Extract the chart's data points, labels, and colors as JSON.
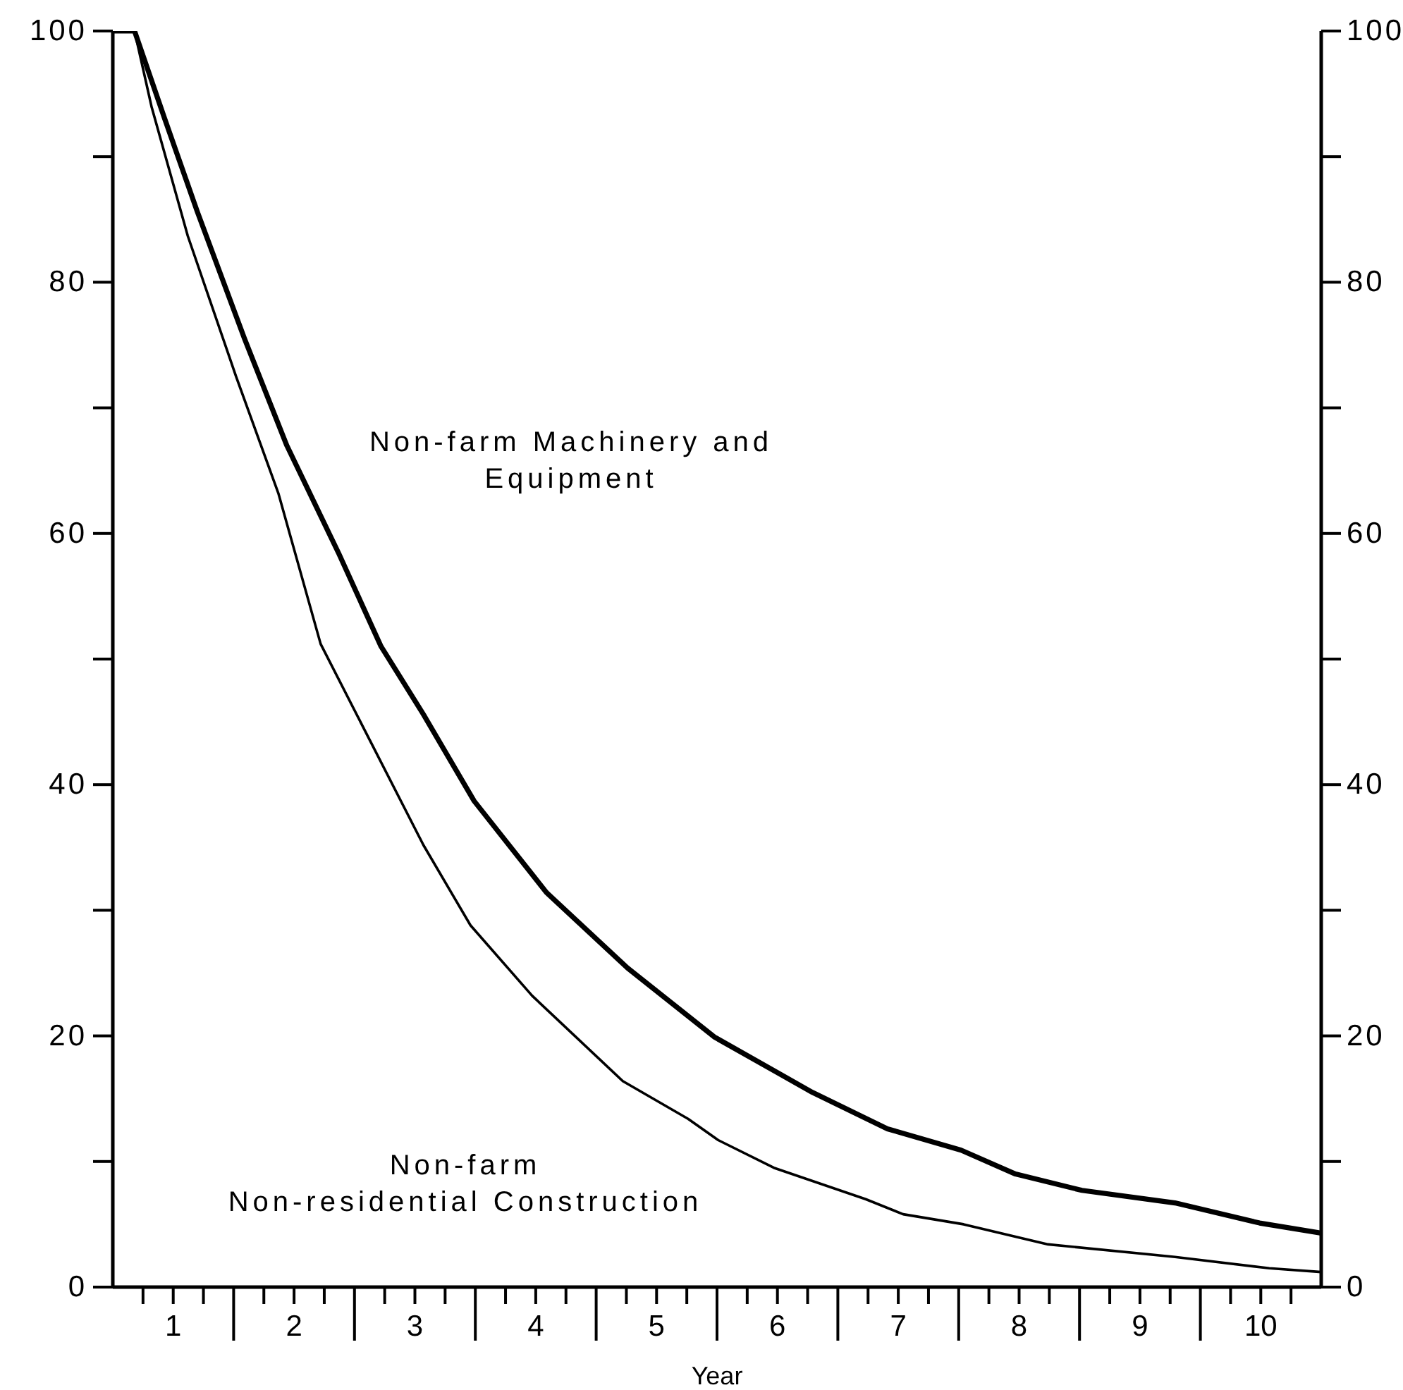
{
  "chart_data": {
    "type": "line",
    "xlabel": "Year",
    "xlim": [
      0.5,
      10.5
    ],
    "xticks": [
      {
        "value": 0.75,
        "label": null
      },
      {
        "value": 1,
        "label": "1"
      },
      {
        "value": 1.25,
        "label": null
      },
      {
        "value": 1.5,
        "label": null
      },
      {
        "value": 1.75,
        "label": null
      },
      {
        "value": 2,
        "label": "2"
      },
      {
        "value": 2.25,
        "label": null
      },
      {
        "value": 2.5,
        "label": null
      },
      {
        "value": 2.75,
        "label": null
      },
      {
        "value": 3,
        "label": "3"
      },
      {
        "value": 3.25,
        "label": null
      },
      {
        "value": 3.5,
        "label": null
      },
      {
        "value": 3.75,
        "label": null
      },
      {
        "value": 4,
        "label": "4"
      },
      {
        "value": 4.25,
        "label": null
      },
      {
        "value": 4.5,
        "label": null
      },
      {
        "value": 4.75,
        "label": null
      },
      {
        "value": 5,
        "label": "5"
      },
      {
        "value": 5.25,
        "label": null
      },
      {
        "value": 5.5,
        "label": null
      },
      {
        "value": 5.75,
        "label": null
      },
      {
        "value": 6,
        "label": "6"
      },
      {
        "value": 6.25,
        "label": null
      },
      {
        "value": 6.5,
        "label": null
      },
      {
        "value": 6.75,
        "label": null
      },
      {
        "value": 7,
        "label": "7"
      },
      {
        "value": 7.25,
        "label": null
      },
      {
        "value": 7.5,
        "label": null
      },
      {
        "value": 7.75,
        "label": null
      },
      {
        "value": 8,
        "label": "8"
      },
      {
        "value": 8.25,
        "label": null
      },
      {
        "value": 8.5,
        "label": null
      },
      {
        "value": 8.75,
        "label": null
      },
      {
        "value": 9,
        "label": "9"
      },
      {
        "value": 9.25,
        "label": null
      },
      {
        "value": 9.5,
        "label": null
      },
      {
        "value": 9.75,
        "label": null
      },
      {
        "value": 10,
        "label": "10"
      },
      {
        "value": 10.25,
        "label": null
      }
    ],
    "ylim": [
      0,
      100
    ],
    "yticks": [
      0,
      {
        "value": 10,
        "label": null
      },
      20,
      {
        "value": 30,
        "label": null
      },
      40,
      {
        "value": 50,
        "label": null
      },
      60,
      {
        "value": 70,
        "label": null
      },
      80,
      {
        "value": 90,
        "label": null
      },
      100
    ],
    "y2lim": [
      0,
      100
    ],
    "y2ticks": [
      0,
      {
        "value": 10,
        "label": null
      },
      20,
      {
        "value": 30,
        "label": null
      },
      40,
      {
        "value": 50,
        "label": null
      },
      60,
      {
        "value": 70,
        "label": null
      },
      80,
      {
        "value": 90,
        "label": null
      },
      100
    ],
    "marker": "none",
    "line_style": "solid",
    "series": [
      {
        "name": "Non-farm Machinery and\nEquipment",
        "color": "#000000",
        "x": [
          0.5,
          0.68,
          0.93,
          1.2,
          1.59,
          1.94,
          2.37,
          2.72,
          3.07,
          3.49,
          4.09,
          4.76,
          5.48,
          6.29,
          6.91,
          7.52,
          7.97,
          8.52,
          9.29,
          9.99,
          10.5
        ],
        "values": [
          100,
          100,
          93,
          85.6,
          75.5,
          67,
          58.4,
          51,
          45.6,
          38.7,
          31.4,
          25.4,
          19.9,
          15.5,
          12.6,
          10.9,
          9,
          7.7,
          6.7,
          5.1,
          4.3
        ]
      },
      {
        "name": "Non-farm\nNon-residential Construction",
        "color": "#000000",
        "x": [
          0.5,
          0.68,
          0.82,
          1.12,
          1.52,
          1.87,
          2.22,
          3.07,
          3.46,
          3.97,
          4.72,
          5.26,
          5.51,
          5.97,
          6.73,
          7.04,
          7.54,
          8.24,
          9.29,
          10.07,
          10.5
        ],
        "values": [
          100,
          100,
          94,
          83.7,
          72.5,
          63.2,
          51.2,
          35.2,
          28.8,
          23.2,
          16.4,
          13.4,
          11.7,
          9.5,
          7,
          5.8,
          5,
          3.4,
          2.4,
          1.5,
          1.2
        ]
      }
    ]
  }
}
